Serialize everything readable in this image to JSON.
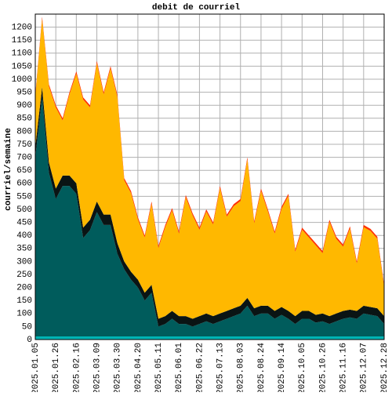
{
  "chart_data": {
    "type": "stacked-area",
    "title": "debit de courriel",
    "y_label": "courriel/semaine",
    "categories": [
      "2025.01.05",
      null,
      null,
      "2025.01.26",
      null,
      null,
      "2025.02.16",
      null,
      null,
      "2025.03.09",
      null,
      null,
      "2025.03.30",
      null,
      null,
      "2025.04.20",
      null,
      null,
      "2025.05.11",
      null,
      null,
      "2025.06.01",
      null,
      null,
      "2025.06.22",
      null,
      null,
      "2025.07.13",
      null,
      null,
      "2025.08.03",
      null,
      null,
      "2025.08.24",
      null,
      null,
      "2025.09.14",
      null,
      null,
      "2025.10.05",
      null,
      null,
      "2025.10.26",
      null,
      null,
      "2025.11.16",
      null,
      null,
      "2025.12.07",
      null,
      null,
      "2025.12.28"
    ],
    "series": [
      {
        "color": "#00b4b4",
        "values": [
          12,
          12,
          12,
          12,
          12,
          12,
          12,
          12,
          12,
          12,
          12,
          12,
          12,
          12,
          12,
          12,
          12,
          12,
          12,
          12,
          12,
          12,
          12,
          12,
          12,
          12,
          12,
          12,
          12,
          12,
          12,
          12,
          12,
          12,
          12,
          12,
          12,
          12,
          12,
          12,
          12,
          12,
          12,
          12,
          12,
          12,
          12,
          12,
          12,
          12,
          12,
          12
        ]
      },
      {
        "color": "#005c5c",
        "values": [
          688,
          918,
          628,
          528,
          578,
          578,
          548,
          378,
          408,
          478,
          428,
          428,
          318,
          258,
          218,
          188,
          138,
          168,
          38,
          48,
          68,
          48,
          48,
          38,
          48,
          58,
          48,
          58,
          68,
          78,
          88,
          118,
          78,
          88,
          88,
          68,
          83,
          68,
          48,
          68,
          68,
          53,
          58,
          48,
          58,
          68,
          73,
          68,
          88,
          83,
          78,
          48
        ]
      },
      {
        "color": "#0a1414",
        "values": [
          40,
          40,
          40,
          40,
          40,
          40,
          40,
          40,
          40,
          40,
          40,
          40,
          40,
          30,
          30,
          30,
          30,
          30,
          30,
          30,
          30,
          30,
          30,
          30,
          30,
          30,
          30,
          30,
          30,
          30,
          30,
          30,
          30,
          30,
          30,
          30,
          30,
          30,
          30,
          30,
          30,
          30,
          30,
          30,
          30,
          30,
          30,
          30,
          30,
          30,
          30,
          30
        ]
      },
      {
        "color": "#ffb800",
        "values": [
          192,
          262,
          292,
          312,
          212,
          312,
          422,
          492,
          432,
          532,
          462,
          562,
          562,
          312,
          302,
          232,
          212,
          312,
          272,
          342,
          387,
          317,
          457,
          397,
          332,
          392,
          352,
          482,
          362,
          392,
          402,
          532,
          327,
          442,
          362,
          297,
          377,
          442,
          247,
          312,
          282,
          267,
          232,
          362,
          287,
          247,
          312,
          182,
          302,
          292,
          267,
          112
        ]
      },
      {
        "color": "#ff3000",
        "values": [
          8,
          8,
          8,
          8,
          8,
          8,
          8,
          8,
          8,
          8,
          8,
          8,
          8,
          8,
          8,
          8,
          8,
          8,
          8,
          8,
          8,
          8,
          8,
          8,
          8,
          8,
          8,
          8,
          8,
          8,
          8,
          8,
          8,
          8,
          8,
          8,
          8,
          8,
          8,
          8,
          8,
          8,
          8,
          8,
          8,
          8,
          8,
          8,
          8,
          8,
          8,
          8
        ]
      }
    ],
    "ylim": [
      0,
      1250
    ],
    "yticks": [
      0,
      50,
      100,
      150,
      200,
      250,
      300,
      350,
      400,
      450,
      500,
      550,
      600,
      650,
      700,
      750,
      800,
      850,
      900,
      950,
      1000,
      1050,
      1100,
      1150,
      1200
    ],
    "grid": true
  }
}
